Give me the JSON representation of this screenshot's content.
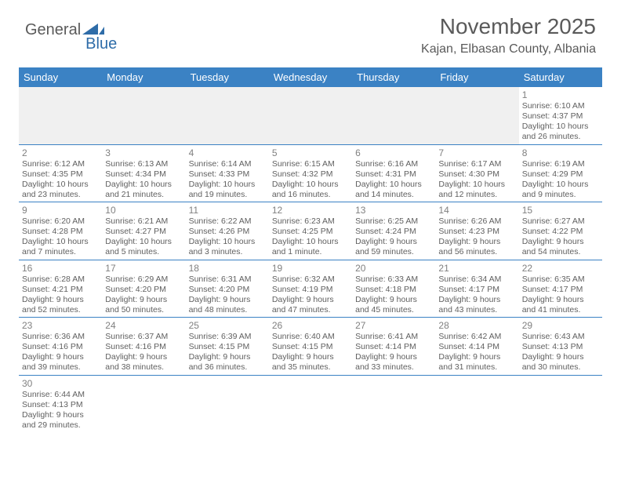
{
  "logo": {
    "text_general": "General",
    "text_blue": "Blue",
    "flag_color": "#2e6ca8"
  },
  "title": "November 2025",
  "location": "Kajan, Elbasan County, Albania",
  "colors": {
    "header_bg": "#3b82c4",
    "header_fg": "#ffffff",
    "border": "#3b82c4",
    "daynum": "#808080",
    "body_text": "#606060",
    "empty_row_bg": "#f0f0f0",
    "title_color": "#5a5a5a"
  },
  "day_headers": [
    "Sunday",
    "Monday",
    "Tuesday",
    "Wednesday",
    "Thursday",
    "Friday",
    "Saturday"
  ],
  "weeks": [
    [
      null,
      null,
      null,
      null,
      null,
      null,
      {
        "n": "1",
        "sunrise": "Sunrise: 6:10 AM",
        "sunset": "Sunset: 4:37 PM",
        "d1": "Daylight: 10 hours",
        "d2": "and 26 minutes."
      }
    ],
    [
      {
        "n": "2",
        "sunrise": "Sunrise: 6:12 AM",
        "sunset": "Sunset: 4:35 PM",
        "d1": "Daylight: 10 hours",
        "d2": "and 23 minutes."
      },
      {
        "n": "3",
        "sunrise": "Sunrise: 6:13 AM",
        "sunset": "Sunset: 4:34 PM",
        "d1": "Daylight: 10 hours",
        "d2": "and 21 minutes."
      },
      {
        "n": "4",
        "sunrise": "Sunrise: 6:14 AM",
        "sunset": "Sunset: 4:33 PM",
        "d1": "Daylight: 10 hours",
        "d2": "and 19 minutes."
      },
      {
        "n": "5",
        "sunrise": "Sunrise: 6:15 AM",
        "sunset": "Sunset: 4:32 PM",
        "d1": "Daylight: 10 hours",
        "d2": "and 16 minutes."
      },
      {
        "n": "6",
        "sunrise": "Sunrise: 6:16 AM",
        "sunset": "Sunset: 4:31 PM",
        "d1": "Daylight: 10 hours",
        "d2": "and 14 minutes."
      },
      {
        "n": "7",
        "sunrise": "Sunrise: 6:17 AM",
        "sunset": "Sunset: 4:30 PM",
        "d1": "Daylight: 10 hours",
        "d2": "and 12 minutes."
      },
      {
        "n": "8",
        "sunrise": "Sunrise: 6:19 AM",
        "sunset": "Sunset: 4:29 PM",
        "d1": "Daylight: 10 hours",
        "d2": "and 9 minutes."
      }
    ],
    [
      {
        "n": "9",
        "sunrise": "Sunrise: 6:20 AM",
        "sunset": "Sunset: 4:28 PM",
        "d1": "Daylight: 10 hours",
        "d2": "and 7 minutes."
      },
      {
        "n": "10",
        "sunrise": "Sunrise: 6:21 AM",
        "sunset": "Sunset: 4:27 PM",
        "d1": "Daylight: 10 hours",
        "d2": "and 5 minutes."
      },
      {
        "n": "11",
        "sunrise": "Sunrise: 6:22 AM",
        "sunset": "Sunset: 4:26 PM",
        "d1": "Daylight: 10 hours",
        "d2": "and 3 minutes."
      },
      {
        "n": "12",
        "sunrise": "Sunrise: 6:23 AM",
        "sunset": "Sunset: 4:25 PM",
        "d1": "Daylight: 10 hours",
        "d2": "and 1 minute."
      },
      {
        "n": "13",
        "sunrise": "Sunrise: 6:25 AM",
        "sunset": "Sunset: 4:24 PM",
        "d1": "Daylight: 9 hours",
        "d2": "and 59 minutes."
      },
      {
        "n": "14",
        "sunrise": "Sunrise: 6:26 AM",
        "sunset": "Sunset: 4:23 PM",
        "d1": "Daylight: 9 hours",
        "d2": "and 56 minutes."
      },
      {
        "n": "15",
        "sunrise": "Sunrise: 6:27 AM",
        "sunset": "Sunset: 4:22 PM",
        "d1": "Daylight: 9 hours",
        "d2": "and 54 minutes."
      }
    ],
    [
      {
        "n": "16",
        "sunrise": "Sunrise: 6:28 AM",
        "sunset": "Sunset: 4:21 PM",
        "d1": "Daylight: 9 hours",
        "d2": "and 52 minutes."
      },
      {
        "n": "17",
        "sunrise": "Sunrise: 6:29 AM",
        "sunset": "Sunset: 4:20 PM",
        "d1": "Daylight: 9 hours",
        "d2": "and 50 minutes."
      },
      {
        "n": "18",
        "sunrise": "Sunrise: 6:31 AM",
        "sunset": "Sunset: 4:20 PM",
        "d1": "Daylight: 9 hours",
        "d2": "and 48 minutes."
      },
      {
        "n": "19",
        "sunrise": "Sunrise: 6:32 AM",
        "sunset": "Sunset: 4:19 PM",
        "d1": "Daylight: 9 hours",
        "d2": "and 47 minutes."
      },
      {
        "n": "20",
        "sunrise": "Sunrise: 6:33 AM",
        "sunset": "Sunset: 4:18 PM",
        "d1": "Daylight: 9 hours",
        "d2": "and 45 minutes."
      },
      {
        "n": "21",
        "sunrise": "Sunrise: 6:34 AM",
        "sunset": "Sunset: 4:17 PM",
        "d1": "Daylight: 9 hours",
        "d2": "and 43 minutes."
      },
      {
        "n": "22",
        "sunrise": "Sunrise: 6:35 AM",
        "sunset": "Sunset: 4:17 PM",
        "d1": "Daylight: 9 hours",
        "d2": "and 41 minutes."
      }
    ],
    [
      {
        "n": "23",
        "sunrise": "Sunrise: 6:36 AM",
        "sunset": "Sunset: 4:16 PM",
        "d1": "Daylight: 9 hours",
        "d2": "and 39 minutes."
      },
      {
        "n": "24",
        "sunrise": "Sunrise: 6:37 AM",
        "sunset": "Sunset: 4:16 PM",
        "d1": "Daylight: 9 hours",
        "d2": "and 38 minutes."
      },
      {
        "n": "25",
        "sunrise": "Sunrise: 6:39 AM",
        "sunset": "Sunset: 4:15 PM",
        "d1": "Daylight: 9 hours",
        "d2": "and 36 minutes."
      },
      {
        "n": "26",
        "sunrise": "Sunrise: 6:40 AM",
        "sunset": "Sunset: 4:15 PM",
        "d1": "Daylight: 9 hours",
        "d2": "and 35 minutes."
      },
      {
        "n": "27",
        "sunrise": "Sunrise: 6:41 AM",
        "sunset": "Sunset: 4:14 PM",
        "d1": "Daylight: 9 hours",
        "d2": "and 33 minutes."
      },
      {
        "n": "28",
        "sunrise": "Sunrise: 6:42 AM",
        "sunset": "Sunset: 4:14 PM",
        "d1": "Daylight: 9 hours",
        "d2": "and 31 minutes."
      },
      {
        "n": "29",
        "sunrise": "Sunrise: 6:43 AM",
        "sunset": "Sunset: 4:13 PM",
        "d1": "Daylight: 9 hours",
        "d2": "and 30 minutes."
      }
    ],
    [
      {
        "n": "30",
        "sunrise": "Sunrise: 6:44 AM",
        "sunset": "Sunset: 4:13 PM",
        "d1": "Daylight: 9 hours",
        "d2": "and 29 minutes."
      },
      null,
      null,
      null,
      null,
      null,
      null
    ]
  ]
}
